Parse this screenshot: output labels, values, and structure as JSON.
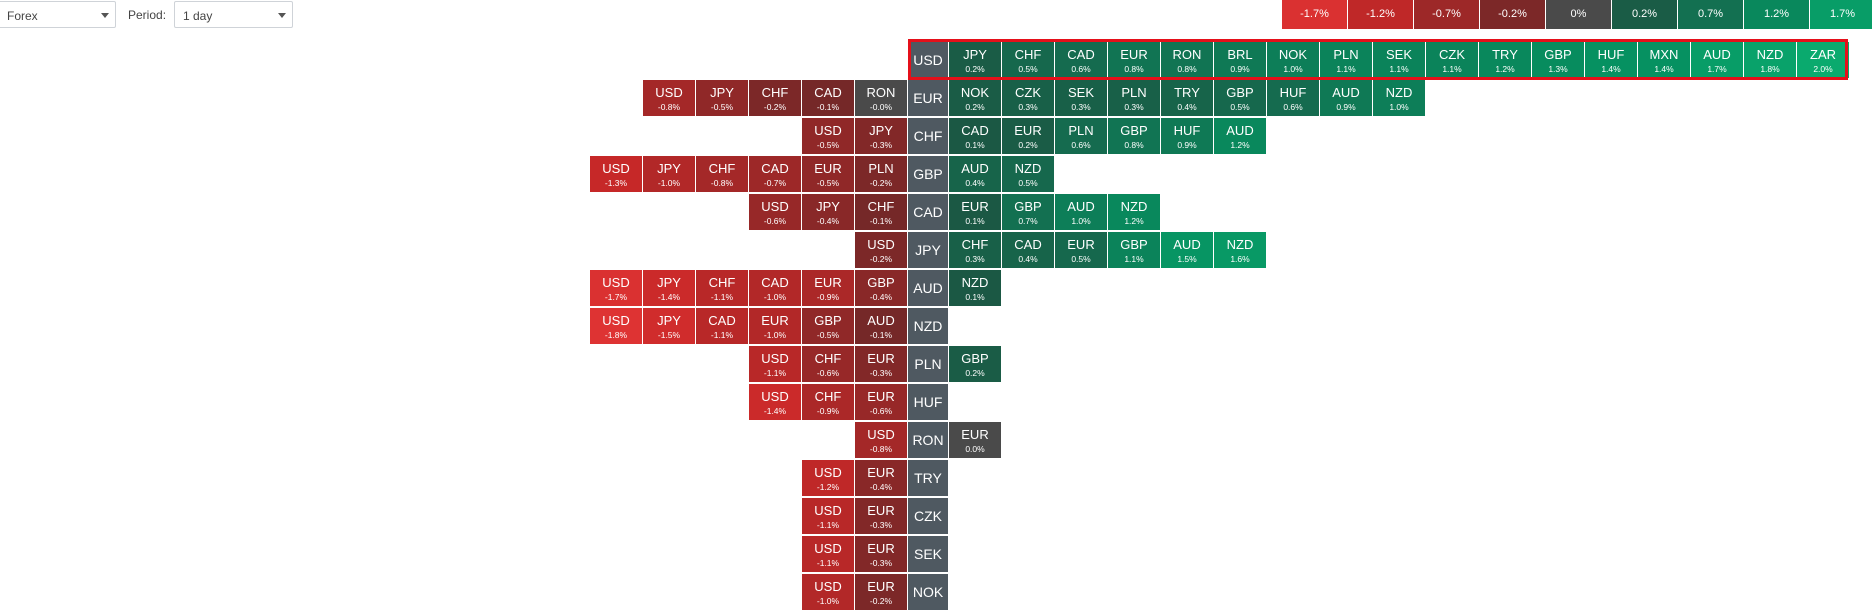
{
  "toolbar": {
    "market_select": "Forex",
    "period_label": "Period:",
    "period_select": "1 day"
  },
  "legend": [
    "-1.7%",
    "-1.2%",
    "-0.7%",
    "-0.2%",
    "0%",
    "0.2%",
    "0.7%",
    "1.2%",
    "1.7%"
  ],
  "colors": {
    "neutral": "#4a4a4a",
    "base_label": "#4f5961",
    "highlight_border": "#e5101a"
  },
  "rows": [
    {
      "base": "USD",
      "left": [],
      "right": [
        [
          "JPY",
          "0.2%"
        ],
        [
          "CHF",
          "0.5%"
        ],
        [
          "CAD",
          "0.6%"
        ],
        [
          "EUR",
          "0.8%"
        ],
        [
          "RON",
          "0.8%"
        ],
        [
          "BRL",
          "0.9%"
        ],
        [
          "NOK",
          "1.0%"
        ],
        [
          "PLN",
          "1.1%"
        ],
        [
          "SEK",
          "1.1%"
        ],
        [
          "CZK",
          "1.1%"
        ],
        [
          "TRY",
          "1.2%"
        ],
        [
          "GBP",
          "1.3%"
        ],
        [
          "HUF",
          "1.4%"
        ],
        [
          "MXN",
          "1.4%"
        ],
        [
          "AUD",
          "1.7%"
        ],
        [
          "NZD",
          "1.8%"
        ],
        [
          "ZAR",
          "2.0%"
        ]
      ]
    },
    {
      "base": "EUR",
      "left": [
        [
          "USD",
          "-0.8%"
        ],
        [
          "JPY",
          "-0.5%"
        ],
        [
          "CHF",
          "-0.2%"
        ],
        [
          "CAD",
          "-0.1%"
        ],
        [
          "RON",
          "-0.0%"
        ]
      ],
      "right": [
        [
          "NOK",
          "0.2%"
        ],
        [
          "CZK",
          "0.3%"
        ],
        [
          "SEK",
          "0.3%"
        ],
        [
          "PLN",
          "0.3%"
        ],
        [
          "TRY",
          "0.4%"
        ],
        [
          "GBP",
          "0.5%"
        ],
        [
          "HUF",
          "0.6%"
        ],
        [
          "AUD",
          "0.9%"
        ],
        [
          "NZD",
          "1.0%"
        ]
      ]
    },
    {
      "base": "CHF",
      "left": [
        [
          "USD",
          "-0.5%"
        ],
        [
          "JPY",
          "-0.3%"
        ]
      ],
      "right": [
        [
          "CAD",
          "0.1%"
        ],
        [
          "EUR",
          "0.2%"
        ],
        [
          "PLN",
          "0.6%"
        ],
        [
          "GBP",
          "0.8%"
        ],
        [
          "HUF",
          "0.9%"
        ],
        [
          "AUD",
          "1.2%"
        ]
      ]
    },
    {
      "base": "GBP",
      "left": [
        [
          "USD",
          "-1.3%"
        ],
        [
          "JPY",
          "-1.0%"
        ],
        [
          "CHF",
          "-0.8%"
        ],
        [
          "CAD",
          "-0.7%"
        ],
        [
          "EUR",
          "-0.5%"
        ],
        [
          "PLN",
          "-0.2%"
        ]
      ],
      "right": [
        [
          "AUD",
          "0.4%"
        ],
        [
          "NZD",
          "0.5%"
        ]
      ]
    },
    {
      "base": "CAD",
      "left": [
        [
          "USD",
          "-0.6%"
        ],
        [
          "JPY",
          "-0.4%"
        ],
        [
          "CHF",
          "-0.1%"
        ]
      ],
      "right": [
        [
          "EUR",
          "0.1%"
        ],
        [
          "GBP",
          "0.7%"
        ],
        [
          "AUD",
          "1.0%"
        ],
        [
          "NZD",
          "1.2%"
        ]
      ]
    },
    {
      "base": "JPY",
      "left": [
        [
          "USD",
          "-0.2%"
        ]
      ],
      "right": [
        [
          "CHF",
          "0.3%"
        ],
        [
          "CAD",
          "0.4%"
        ],
        [
          "EUR",
          "0.5%"
        ],
        [
          "GBP",
          "1.1%"
        ],
        [
          "AUD",
          "1.5%"
        ],
        [
          "NZD",
          "1.6%"
        ]
      ]
    },
    {
      "base": "AUD",
      "left": [
        [
          "USD",
          "-1.7%"
        ],
        [
          "JPY",
          "-1.4%"
        ],
        [
          "CHF",
          "-1.1%"
        ],
        [
          "CAD",
          "-1.0%"
        ],
        [
          "EUR",
          "-0.9%"
        ],
        [
          "GBP",
          "-0.4%"
        ]
      ],
      "right": [
        [
          "NZD",
          "0.1%"
        ]
      ]
    },
    {
      "base": "NZD",
      "left": [
        [
          "USD",
          "-1.8%"
        ],
        [
          "JPY",
          "-1.5%"
        ],
        [
          "CAD",
          "-1.1%"
        ],
        [
          "EUR",
          "-1.0%"
        ],
        [
          "GBP",
          "-0.5%"
        ],
        [
          "AUD",
          "-0.1%"
        ]
      ],
      "right": []
    },
    {
      "base": "PLN",
      "left": [
        [
          "USD",
          "-1.1%"
        ],
        [
          "CHF",
          "-0.6%"
        ],
        [
          "EUR",
          "-0.3%"
        ]
      ],
      "right": [
        [
          "GBP",
          "0.2%"
        ]
      ]
    },
    {
      "base": "HUF",
      "left": [
        [
          "USD",
          "-1.4%"
        ],
        [
          "CHF",
          "-0.9%"
        ],
        [
          "EUR",
          "-0.6%"
        ]
      ],
      "right": []
    },
    {
      "base": "RON",
      "left": [
        [
          "USD",
          "-0.8%"
        ]
      ],
      "right": [
        [
          "EUR",
          "0.0%"
        ]
      ]
    },
    {
      "base": "TRY",
      "left": [
        [
          "USD",
          "-1.2%"
        ],
        [
          "EUR",
          "-0.4%"
        ]
      ],
      "right": []
    },
    {
      "base": "CZK",
      "left": [
        [
          "USD",
          "-1.1%"
        ],
        [
          "EUR",
          "-0.3%"
        ]
      ],
      "right": []
    },
    {
      "base": "SEK",
      "left": [
        [
          "USD",
          "-1.1%"
        ],
        [
          "EUR",
          "-0.3%"
        ]
      ],
      "right": []
    },
    {
      "base": "NOK",
      "left": [
        [
          "USD",
          "-1.0%"
        ],
        [
          "EUR",
          "-0.2%"
        ]
      ],
      "right": []
    }
  ]
}
